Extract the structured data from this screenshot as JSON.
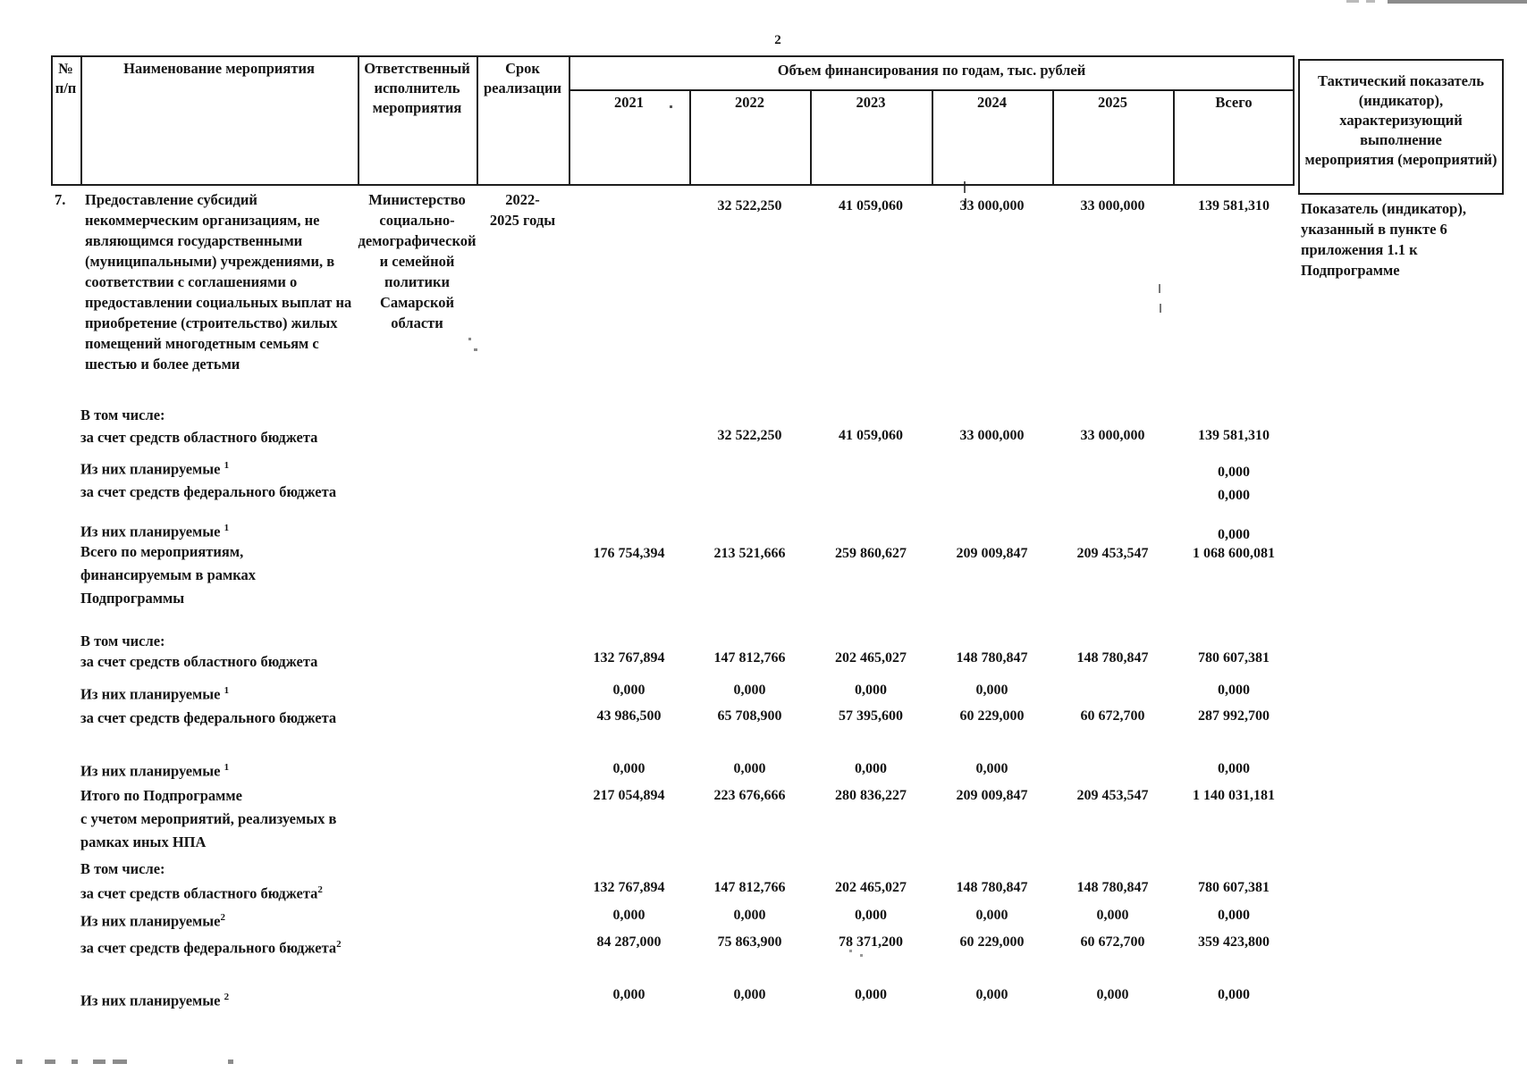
{
  "page": {
    "number": "2"
  },
  "table": {
    "headers": {
      "num": "№\nп/п",
      "name": "Наименование мероприятия",
      "executor": "Ответственный\nисполнитель\nмероприятия",
      "term": "Срок\nреализации",
      "financing_group": "Объем финансирования по годам, тыс. рублей",
      "years": [
        "2021",
        "2022",
        "2023",
        "2024",
        "2025",
        "Всего"
      ],
      "indicator": "Тактический показатель\n(индикатор),\nхарактеризующий выполнение\nмероприятия (мероприятий)"
    },
    "row7": {
      "num": "7.",
      "name": "Предоставление субсидий\nнекоммерческим организациям, не\nявляющимся государственными\n(муниципальными) учреждениями, в\nсоответствии с соглашениями о\nпредоставлении социальных выплат на\nприобретение (строительство) жилых\nпомещений многодетным семьям с\nшестью и более детьми",
      "executor": "Министерство\nсоциально-\nдемографической\nи семейной\nполитики\nСамарской\nобласти",
      "term": "2022-\n2025 годы",
      "values": [
        "",
        "32 522,250",
        "41 059,060",
        "33 000,000",
        "33 000,000",
        "139 581,310"
      ],
      "indicator": "Показатель (индикатор),\nуказанный в пункте 6\nприложения 1.1 к\nПодпрограмме"
    },
    "rows": [
      {
        "label": "В том числе:",
        "sup": "",
        "values": [
          "",
          "",
          "",
          "",
          "",
          ""
        ]
      },
      {
        "label": "за счет средств областного бюджета",
        "sup": "",
        "values": [
          "",
          "32 522,250",
          "41 059,060",
          "33 000,000",
          "33 000,000",
          "139 581,310"
        ]
      },
      {
        "label": "Из них планируемые ",
        "sup": "1",
        "values": [
          "",
          "",
          "",
          "",
          "",
          "0,000"
        ]
      },
      {
        "label": "за счет средств федерального бюджета",
        "sup": "",
        "values": [
          "",
          "",
          "",
          "",
          "",
          "0,000"
        ]
      },
      {
        "label": "Из них планируемые ",
        "sup": "1",
        "values": [
          "",
          "",
          "",
          "",
          "",
          "0,000"
        ]
      },
      {
        "label": "Всего по мероприятиям,\nфинансируемым в рамках\nПодпрограммы",
        "sup": "",
        "values": [
          "176 754,394",
          "213 521,666",
          "259 860,627",
          "209 009,847",
          "209 453,547",
          "1 068 600,081"
        ]
      },
      {
        "label": "В том числе:",
        "sup": "",
        "values": [
          "",
          "",
          "",
          "",
          "",
          ""
        ]
      },
      {
        "label": "за счет средств областного бюджета",
        "sup": "",
        "values": [
          "132 767,894",
          "147 812,766",
          "202 465,027",
          "148 780,847",
          "148 780,847",
          "780 607,381"
        ]
      },
      {
        "label": "Из них планируемые ",
        "sup": "1",
        "values": [
          "0,000",
          "0,000",
          "0,000",
          "0,000",
          "",
          "0,000"
        ]
      },
      {
        "label": "за счет средств федерального  бюджета",
        "sup": "",
        "values": [
          "43 986,500",
          "65 708,900",
          "57 395,600",
          "60 229,000",
          "60 672,700",
          "287 992,700"
        ]
      },
      {
        "label": "Из них планируемые ",
        "sup": "1",
        "values": [
          "0,000",
          "0,000",
          "0,000",
          "0,000",
          "",
          "0,000"
        ]
      },
      {
        "label": "Итого по Подпрограмме\nс учетом мероприятий, реализуемых в\nрамках иных НПА",
        "sup": "",
        "values": [
          "217 054,894",
          "223 676,666",
          "280 836,227",
          "209 009,847",
          "209 453,547",
          "1 140 031,181"
        ]
      },
      {
        "label": "В том числе:",
        "sup": "",
        "values": [
          "",
          "",
          "",
          "",
          "",
          ""
        ]
      },
      {
        "label": "за счет средств областного бюджета",
        "sup": "2",
        "values": [
          "132 767,894",
          "147 812,766",
          "202 465,027",
          "148 780,847",
          "148 780,847",
          "780 607,381"
        ]
      },
      {
        "label": "Из них планируемые",
        "sup": "2",
        "values": [
          "0,000",
          "0,000",
          "0,000",
          "0,000",
          "0,000",
          "0,000"
        ]
      },
      {
        "label": "за счет средств федерального  бюджета",
        "sup": "2",
        "values": [
          "84 287,000",
          "75 863,900",
          "78 371,200",
          "60 229,000",
          "60 672,700",
          "359 423,800"
        ]
      },
      {
        "label": "Из них планируемые ",
        "sup": "2",
        "values": [
          "0,000",
          "0,000",
          "0,000",
          "0,000",
          "0,000",
          "0,000"
        ]
      }
    ]
  }
}
